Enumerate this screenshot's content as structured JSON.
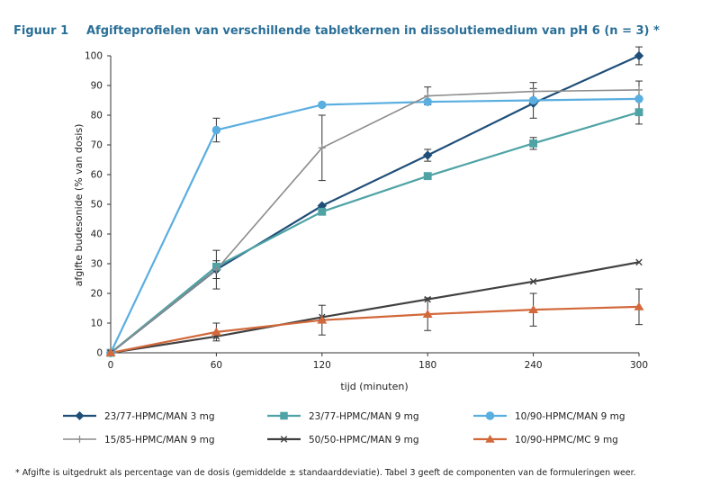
{
  "figure": {
    "number": "Figuur 1",
    "title": "Afgifteprofielen van verschillende tabletkernen in dissolutiemedium van pH 6 (n = 3) *"
  },
  "footnote": "* Afgifte is uitgedrukt als percentage van de dosis (gemiddelde ± standaarddeviatie). Tabel 3 geeft de componenten van de formuleringen weer.",
  "chart_data": {
    "type": "line",
    "title": "Afgifteprofielen van verschillende tabletkernen in dissolutiemedium van pH 6 (n = 3) *",
    "xlabel": "tijd (minuten)",
    "ylabel": "afgifte budesonide (% van dosis)",
    "x": [
      0,
      60,
      120,
      180,
      240,
      300
    ],
    "x_ticks": [
      "0",
      "60",
      "120",
      "180",
      "240",
      "300"
    ],
    "y_ticks": [
      "0",
      "10",
      "20",
      "30",
      "40",
      "50",
      "60",
      "70",
      "80",
      "90",
      "100"
    ],
    "xlim": [
      0,
      300
    ],
    "ylim": [
      0,
      100
    ],
    "grid": false,
    "legend_position": "bottom",
    "series": [
      {
        "name": "23/77-HPMC/MAN 3 mg",
        "color": "#1f4e79",
        "marker": "diamond",
        "values": [
          0,
          28,
          49.5,
          66.5,
          84,
          100
        ],
        "errors": [
          0,
          3,
          0,
          2,
          5,
          3
        ]
      },
      {
        "name": "23/77-HPMC/MAN 9 mg",
        "color": "#4fa3a5",
        "marker": "square",
        "values": [
          0,
          29,
          47.5,
          59.5,
          70.5,
          81
        ],
        "errors": [
          0,
          0,
          0,
          0,
          2,
          4
        ]
      },
      {
        "name": "10/90-HPMC/MAN 9 mg",
        "color": "#5aaee0",
        "marker": "circle",
        "values": [
          0,
          75,
          83.5,
          84.5,
          85,
          85.5
        ],
        "errors": [
          0,
          4,
          0,
          0,
          0,
          0
        ]
      },
      {
        "name": "15/85-HPMC/MAN 9 mg",
        "color": "#8c8c8c",
        "marker": "plus",
        "values": [
          0,
          28,
          69,
          86.5,
          88,
          88.5
        ],
        "errors": [
          0,
          6.5,
          11,
          3,
          3,
          3
        ]
      },
      {
        "name": "50/50-HPMC/MAN 9 mg",
        "color": "#404040",
        "marker": "cross",
        "values": [
          0,
          5.5,
          12,
          18,
          24,
          30.5
        ],
        "errors": [
          0,
          0,
          0,
          0,
          0,
          0
        ]
      },
      {
        "name": "10/90-HPMC/MC 9 mg",
        "color": "#d2693b",
        "marker": "triangle",
        "values": [
          0,
          7,
          11,
          13,
          14.5,
          15.5
        ],
        "errors": [
          0,
          3,
          5,
          5.5,
          5.5,
          6
        ]
      }
    ]
  }
}
